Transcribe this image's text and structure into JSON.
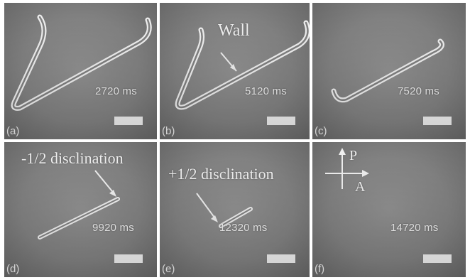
{
  "panels": [
    {
      "label": "(a)",
      "time": "2720 ms"
    },
    {
      "label": "(b)",
      "time": "5120 ms"
    },
    {
      "label": "(c)",
      "time": "7520 ms"
    },
    {
      "label": "(d)",
      "time": "9920 ms"
    },
    {
      "label": "(e)",
      "time": "12320 ms"
    },
    {
      "label": "(f)",
      "time": "14720 ms"
    }
  ],
  "annotations": {
    "wall": "Wall",
    "minus_half": "-1/2 disclination",
    "plus_half": "+1/2 disclination",
    "polarizer": "P",
    "analyzer": "A"
  },
  "colors": {
    "background": "#8a8a8a",
    "line": "#ffffff",
    "text": "#ffffff"
  }
}
